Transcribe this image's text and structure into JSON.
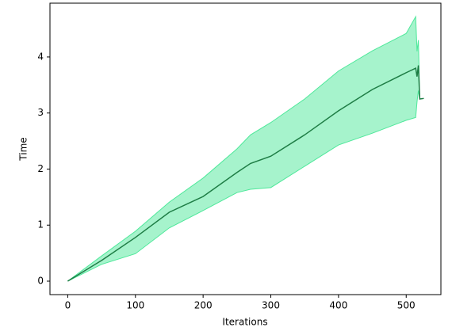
{
  "chart_data": {
    "type": "line",
    "x_label": "Iterations",
    "y_label": "Time",
    "x": [
      0,
      50,
      100,
      150,
      200,
      250,
      270,
      300,
      350,
      400,
      450,
      500,
      514,
      516,
      518,
      520,
      526
    ],
    "series": [
      {
        "color": "#1e7d45",
        "values": [
          0,
          0.37,
          0.78,
          1.23,
          1.51,
          1.94,
          2.1,
          2.23,
          2.61,
          3.04,
          3.42,
          3.72,
          3.8,
          3.65,
          3.85,
          3.25,
          3.26
        ]
      }
    ],
    "band": {
      "color": "#4ee89a",
      "lower": [
        0,
        0.3,
        0.49,
        0.95,
        1.26,
        1.58,
        1.64,
        1.67,
        2.05,
        2.43,
        2.64,
        2.87,
        2.92,
        3.2,
        3.4,
        3.25,
        3.26
      ],
      "upper": [
        0,
        0.45,
        0.89,
        1.41,
        1.84,
        2.36,
        2.61,
        2.83,
        3.25,
        3.75,
        4.11,
        4.42,
        4.72,
        4.1,
        4.3,
        3.25,
        3.26
      ]
    },
    "xlim": [
      -26.25,
      551.25
    ],
    "ylim": [
      -0.24,
      4.96
    ],
    "xticks": [
      0,
      100,
      200,
      300,
      400,
      500
    ],
    "yticks": [
      0,
      1,
      2,
      3,
      4
    ]
  }
}
